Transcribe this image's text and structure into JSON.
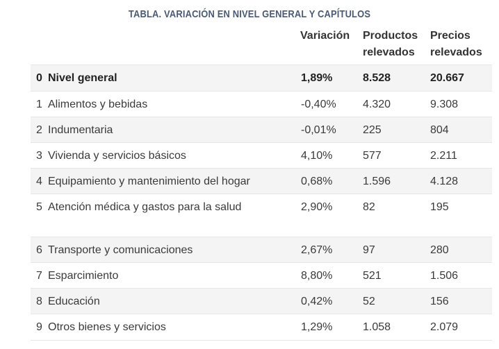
{
  "title": "TABLA. VARIACIÓN EN NIVEL GENERAL Y CAPÍTULOS",
  "columns": {
    "variacion": "Variación",
    "productos_1": "Productos",
    "productos_2": "relevados",
    "precios_1": "Precios",
    "precios_2": "relevados"
  },
  "rows": [
    {
      "num": "0",
      "name": "Nivel general",
      "variacion": "1,89%",
      "productos": "8.528",
      "precios": "20.667"
    },
    {
      "num": "1",
      "name": "Alimentos y bebidas",
      "variacion": "-0,40%",
      "productos": "4.320",
      "precios": "9.308"
    },
    {
      "num": "2",
      "name": "Indumentaria",
      "variacion": "-0,01%",
      "productos": "225",
      "precios": "804"
    },
    {
      "num": "3",
      "name": "Vivienda y servicios básicos",
      "variacion": "4,10%",
      "productos": "577",
      "precios": "2.211"
    },
    {
      "num": "4",
      "name": "Equipamiento y mantenimiento del hogar",
      "variacion": "0,68%",
      "productos": "1.596",
      "precios": "4.128"
    },
    {
      "num": "5",
      "name": "Atención médica y gastos para la salud",
      "variacion": "2,90%",
      "productos": "82",
      "precios": "195"
    },
    {
      "num": "6",
      "name": "Transporte y comunicaciones",
      "variacion": "2,67%",
      "productos": "97",
      "precios": "280"
    },
    {
      "num": "7",
      "name": "Esparcimiento",
      "variacion": "8,80%",
      "productos": "521",
      "precios": "1.506"
    },
    {
      "num": "8",
      "name": "Educación",
      "variacion": "0,42%",
      "productos": "52",
      "precios": "156"
    },
    {
      "num": "9",
      "name": "Otros bienes y servicios",
      "variacion": "1,29%",
      "productos": "1.058",
      "precios": "2.079"
    }
  ]
}
